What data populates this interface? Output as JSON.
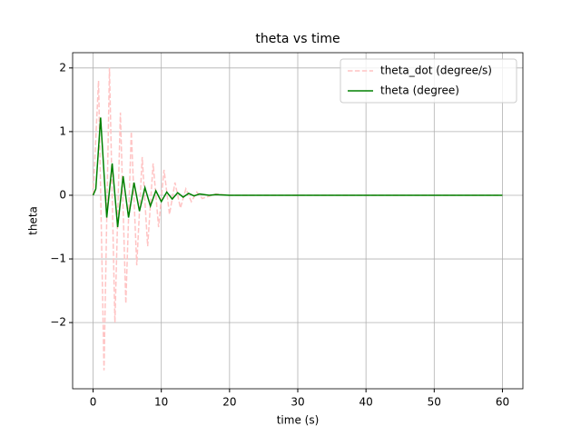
{
  "chart_data": {
    "type": "line",
    "title": "theta vs time",
    "x_label": "time (s)",
    "y_label": "theta",
    "xlim": [
      -3,
      63
    ],
    "ylim": [
      -3.04,
      2.24
    ],
    "xticks": [
      0,
      10,
      20,
      30,
      40,
      50,
      60
    ],
    "yticks": [
      {
        "value": -2,
        "label": "−2"
      },
      {
        "value": -1,
        "label": "−1"
      },
      0,
      1,
      2
    ],
    "grid": true,
    "legend": "upper-right",
    "series": [
      {
        "name": "theta_dot (degree/s)",
        "color": "#ffc4c4",
        "dashed": true,
        "x": [
          0,
          0.8,
          1.6,
          2.4,
          3.2,
          4.0,
          4.8,
          5.6,
          6.4,
          7.2,
          8.0,
          8.8,
          9.6,
          10.4,
          11.2,
          12.0,
          12.8,
          13.6,
          14.4,
          15.2,
          16.0,
          18,
          20,
          60
        ],
        "values": [
          0,
          1.8,
          -2.75,
          2.0,
          -2.0,
          1.3,
          -1.7,
          1.0,
          -1.1,
          0.6,
          -0.8,
          0.5,
          -0.5,
          0.4,
          -0.3,
          0.2,
          -0.2,
          0.1,
          -0.1,
          0.05,
          -0.05,
          0.02,
          0,
          0
        ]
      },
      {
        "name": "theta (degree)",
        "color": "#008000",
        "dashed": false,
        "x": [
          0,
          0.4,
          1.1,
          2.0,
          2.8,
          3.6,
          4.4,
          5.2,
          6.0,
          6.8,
          7.6,
          8.4,
          9.2,
          10.0,
          10.8,
          11.6,
          12.4,
          13.2,
          14.0,
          14.8,
          15.6,
          17,
          18,
          20,
          60
        ],
        "values": [
          0,
          0.1,
          1.22,
          -0.35,
          0.5,
          -0.5,
          0.3,
          -0.35,
          0.2,
          -0.25,
          0.12,
          -0.17,
          0.07,
          -0.1,
          0.05,
          -0.06,
          0.04,
          -0.03,
          0.03,
          -0.01,
          0.02,
          0,
          0.01,
          0,
          0
        ]
      }
    ]
  }
}
